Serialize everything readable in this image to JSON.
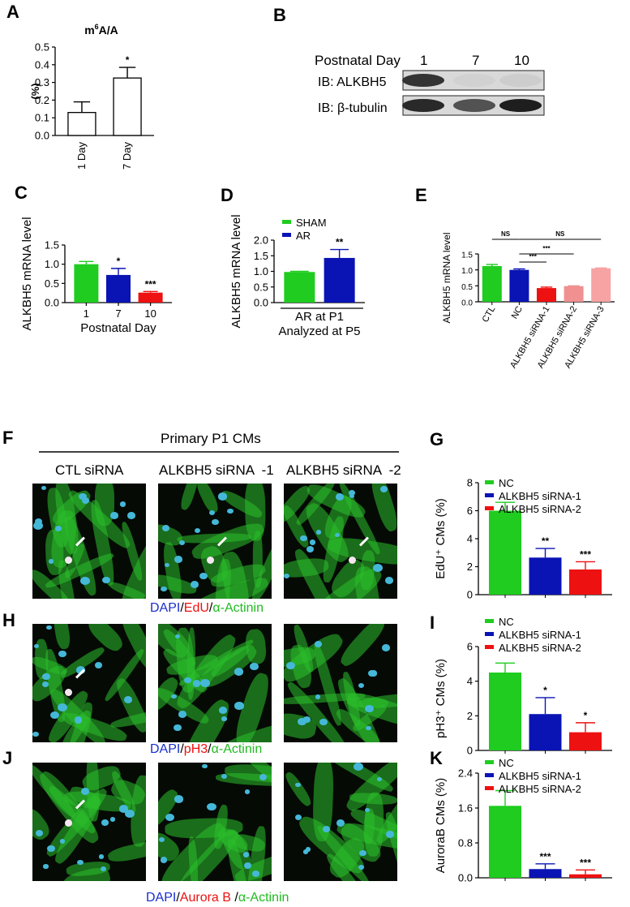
{
  "panel_labels": {
    "A": "A",
    "B": "B",
    "C": "C",
    "D": "D",
    "E": "E",
    "F": "F",
    "G": "G",
    "H": "H",
    "I": "I",
    "J": "J",
    "K": "K"
  },
  "colors": {
    "green": "#1fcc1f",
    "blue": "#0a14b4",
    "red": "#ee1111",
    "pink": "#f09090",
    "salmon": "#f7a3a3",
    "white": "#ffffff"
  },
  "blot": {
    "header_label": "Postnatal Day",
    "days": [
      "1",
      "7",
      "10"
    ],
    "rows": [
      {
        "label": "IB: ALKBH5",
        "intensity": [
          0.85,
          0.08,
          0.1
        ]
      },
      {
        "label": "IB: β-tubulin",
        "intensity": [
          0.9,
          0.7,
          0.95
        ]
      }
    ]
  },
  "micro": {
    "header": "Primary P1 CMs",
    "columns": [
      "CTL siRNA",
      "ALKBH5 siRNA  -1",
      "ALKBH5 siRNA  -2"
    ],
    "captions": [
      {
        "p1": "DAPI",
        "s1": "/",
        "p2": "EdU",
        "s2": "/",
        "p3": "α-Actinin"
      },
      {
        "p1": "DAPI",
        "s1": "/",
        "p2": "pH3",
        "s2": "/",
        "p3": "α-Actinin"
      },
      {
        "p1": "DAPI",
        "s1": "/",
        "p2": "Aurora B",
        "s2": " /",
        "p3": "α-Actinin"
      }
    ]
  },
  "chart_data": [
    {
      "id": "A",
      "type": "bar",
      "title": "m6A/A",
      "ylabel": "(%)",
      "categories": [
        "1 Day",
        "7 Day"
      ],
      "series": [
        {
          "values": [
            0.13,
            0.325
          ],
          "errors": [
            0.06,
            0.06
          ],
          "colors": [
            "#ffffff",
            "#ffffff"
          ]
        }
      ],
      "ylim": [
        0,
        0.5
      ],
      "yticks": [
        "0.0",
        "0.1",
        "0.2",
        "0.3",
        "0.4",
        "0.5"
      ],
      "sig": [
        "",
        "*"
      ],
      "legend": []
    },
    {
      "id": "C",
      "type": "bar",
      "title": "",
      "ylabel": "ALKBH5 mRNA level",
      "xlabel": "Postnatal Day",
      "categories": [
        "1",
        "7",
        "10"
      ],
      "series": [
        {
          "values": [
            1.0,
            0.72,
            0.26
          ],
          "errors": [
            0.07,
            0.17,
            0.03
          ],
          "colors": [
            "#1fcc1f",
            "#0a14b4",
            "#ee1111"
          ]
        }
      ],
      "ylim": [
        0,
        1.5
      ],
      "yticks": [
        "0.0",
        "0.5",
        "1.0",
        "1.5"
      ],
      "sig": [
        "",
        "*",
        "***"
      ],
      "legend": []
    },
    {
      "id": "D",
      "type": "bar",
      "title": "",
      "ylabel": "ALKBH5 mRNA level",
      "xlabel": "AR at P1",
      "xlabel2": "Analyzed at P5",
      "categories": [
        "",
        ""
      ],
      "series": [
        {
          "values": [
            0.98,
            1.43
          ],
          "errors": [
            0.02,
            0.27
          ],
          "colors": [
            "#1fcc1f",
            "#0a14b4"
          ]
        }
      ],
      "ylim": [
        0,
        2.0
      ],
      "yticks": [
        "0.0",
        "0.5",
        "1.0",
        "1.5",
        "2.0"
      ],
      "sig": [
        "",
        "**"
      ],
      "legend": [
        {
          "name": "SHAM",
          "color": "#1fcc1f"
        },
        {
          "name": "AR",
          "color": "#0a14b4"
        }
      ]
    },
    {
      "id": "E",
      "type": "bar",
      "title": "",
      "ylabel": "ALKBH5 mRNA level",
      "categories": [
        "CTL",
        "NC",
        "ALKBH5 siRNA-1",
        "ALKBH5 siRNA-2",
        "ALKBH5 siRNA-3"
      ],
      "series": [
        {
          "values": [
            1.12,
            1.0,
            0.43,
            0.49,
            1.05
          ],
          "errors": [
            0.05,
            0.03,
            0.03,
            0.01,
            0.01
          ],
          "colors": [
            "#1fcc1f",
            "#0a14b4",
            "#ee1111",
            "#f09090",
            "#f7a3a3"
          ]
        }
      ],
      "ylim": [
        0,
        1.5
      ],
      "yticks": [
        "0.0",
        "0.5",
        "1.0",
        "1.5"
      ],
      "sig": [
        "",
        "",
        "",
        "",
        ""
      ],
      "brackets": [
        {
          "from": 0,
          "to": 1,
          "label": "NS"
        },
        {
          "from": 1,
          "to": 4,
          "label": "NS"
        },
        {
          "from": 1,
          "to": 3,
          "label": "***"
        },
        {
          "from": 1,
          "to": 2,
          "label": "***"
        }
      ],
      "legend": []
    },
    {
      "id": "G",
      "type": "bar",
      "title": "",
      "ylabel": "EdU⁺ CMs (%)",
      "categories": [
        "",
        "",
        ""
      ],
      "series": [
        {
          "values": [
            6.0,
            2.65,
            1.8
          ],
          "errors": [
            0.6,
            0.65,
            0.55
          ],
          "colors": [
            "#1fcc1f",
            "#0a14b4",
            "#ee1111"
          ]
        }
      ],
      "ylim": [
        0,
        8
      ],
      "yticks": [
        "0",
        "2",
        "4",
        "6",
        "8"
      ],
      "sig": [
        "",
        "**",
        "***"
      ],
      "legend": [
        {
          "name": "NC",
          "color": "#1fcc1f"
        },
        {
          "name": "ALKBH5 siRNA-1",
          "color": "#0a14b4"
        },
        {
          "name": "ALKBH5 siRNA-2",
          "color": "#ee1111"
        }
      ]
    },
    {
      "id": "I",
      "type": "bar",
      "title": "",
      "ylabel": "pH3⁺ CMs (%)",
      "categories": [
        "",
        "",
        ""
      ],
      "series": [
        {
          "values": [
            4.5,
            2.1,
            1.05
          ],
          "errors": [
            0.55,
            0.95,
            0.55
          ],
          "colors": [
            "#1fcc1f",
            "#0a14b4",
            "#ee1111"
          ]
        }
      ],
      "ylim": [
        0,
        6
      ],
      "yticks": [
        "0",
        "2",
        "4",
        "6"
      ],
      "sig": [
        "",
        "*",
        "*"
      ],
      "legend": [
        {
          "name": "NC",
          "color": "#1fcc1f"
        },
        {
          "name": "ALKBH5 siRNA-1",
          "color": "#0a14b4"
        },
        {
          "name": "ALKBH5 siRNA-2",
          "color": "#ee1111"
        }
      ]
    },
    {
      "id": "K",
      "type": "bar",
      "title": "",
      "ylabel": "AuroraB CMs (%)",
      "categories": [
        "",
        "",
        ""
      ],
      "series": [
        {
          "values": [
            1.65,
            0.2,
            0.08
          ],
          "errors": [
            0.35,
            0.12,
            0.1
          ],
          "colors": [
            "#1fcc1f",
            "#0a14b4",
            "#ee1111"
          ]
        }
      ],
      "ylim": [
        0,
        2.4
      ],
      "yticks": [
        "0.0",
        "0.8",
        "1.6",
        "2.4"
      ],
      "sig": [
        "",
        "***",
        "***"
      ],
      "legend": [
        {
          "name": "NC",
          "color": "#1fcc1f"
        },
        {
          "name": "ALKBH5 siRNA-1",
          "color": "#0a14b4"
        },
        {
          "name": "ALKBH5 siRNA-2",
          "color": "#ee1111"
        }
      ]
    }
  ]
}
